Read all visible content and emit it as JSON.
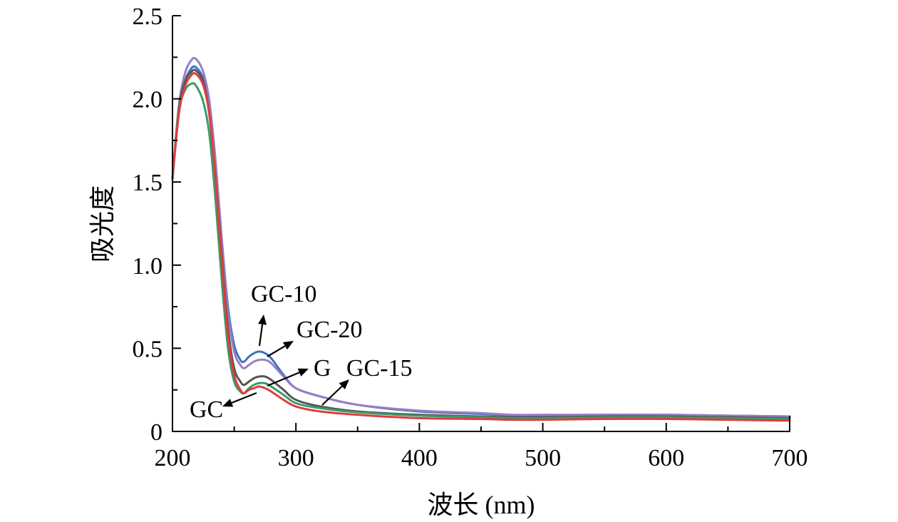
{
  "chart_data": {
    "type": "line",
    "xlabel": "波长 (nm)",
    "ylabel": "吸光度",
    "xlim": [
      200,
      700
    ],
    "ylim": [
      0,
      2.5
    ],
    "xticks": [
      200,
      300,
      400,
      500,
      600,
      700
    ],
    "xtick_labels": [
      "200",
      "300",
      "400",
      "500",
      "600",
      "700"
    ],
    "yticks": [
      0,
      0.5,
      1.0,
      1.5,
      2.0,
      2.5
    ],
    "ytick_labels": [
      "0",
      "0.5",
      "1.0",
      "1.5",
      "2.0",
      "2.5"
    ],
    "grid": false,
    "legend": "none",
    "series": [
      {
        "name": "GC-10",
        "color": "#3a73c4",
        "x": [
          200,
          205,
          210,
          215,
          219,
          225,
          230,
          235,
          240,
          245,
          250,
          255,
          258,
          262,
          266,
          270,
          275,
          280,
          290,
          300,
          320,
          350,
          400,
          450,
          475,
          500,
          550,
          600,
          650,
          700
        ],
        "y": [
          1.52,
          1.9,
          2.1,
          2.18,
          2.19,
          2.12,
          1.95,
          1.6,
          1.15,
          0.75,
          0.52,
          0.43,
          0.42,
          0.45,
          0.47,
          0.48,
          0.47,
          0.44,
          0.34,
          0.26,
          0.21,
          0.16,
          0.12,
          0.105,
          0.095,
          0.095,
          0.1,
          0.1,
          0.095,
          0.09
        ]
      },
      {
        "name": "GC-20",
        "color": "#9a7dc2",
        "x": [
          200,
          205,
          210,
          215,
          219,
          225,
          230,
          235,
          240,
          245,
          250,
          255,
          258,
          262,
          266,
          270,
          275,
          280,
          290,
          300,
          320,
          350,
          400,
          450,
          475,
          500,
          550,
          600,
          650,
          700
        ],
        "y": [
          1.52,
          1.95,
          2.15,
          2.23,
          2.24,
          2.16,
          1.98,
          1.62,
          1.15,
          0.72,
          0.48,
          0.4,
          0.38,
          0.4,
          0.42,
          0.43,
          0.43,
          0.41,
          0.33,
          0.26,
          0.21,
          0.16,
          0.125,
          0.11,
          0.1,
          0.1,
          0.1,
          0.1,
          0.095,
          0.09
        ]
      },
      {
        "name": "G",
        "color": "#555555",
        "x": [
          200,
          205,
          210,
          215,
          219,
          225,
          230,
          235,
          240,
          245,
          250,
          255,
          258,
          262,
          266,
          270,
          275,
          280,
          290,
          300,
          320,
          350,
          400,
          450,
          475,
          500,
          550,
          600,
          650,
          700
        ],
        "y": [
          1.52,
          1.93,
          2.1,
          2.16,
          2.17,
          2.1,
          1.9,
          1.52,
          1.05,
          0.62,
          0.38,
          0.3,
          0.28,
          0.3,
          0.32,
          0.33,
          0.33,
          0.31,
          0.25,
          0.19,
          0.15,
          0.12,
          0.1,
          0.09,
          0.085,
          0.085,
          0.09,
          0.09,
          0.085,
          0.08
        ]
      },
      {
        "name": "GC-15",
        "color": "#3a9a6a",
        "x": [
          200,
          205,
          210,
          215,
          219,
          225,
          230,
          235,
          240,
          245,
          250,
          255,
          258,
          262,
          266,
          270,
          275,
          280,
          290,
          300,
          320,
          350,
          400,
          450,
          475,
          500,
          550,
          600,
          650,
          700
        ],
        "y": [
          1.52,
          1.92,
          2.05,
          2.09,
          2.08,
          1.98,
          1.78,
          1.38,
          0.9,
          0.5,
          0.3,
          0.24,
          0.23,
          0.26,
          0.28,
          0.29,
          0.29,
          0.27,
          0.22,
          0.17,
          0.14,
          0.115,
          0.095,
          0.085,
          0.08,
          0.08,
          0.085,
          0.085,
          0.08,
          0.075
        ]
      },
      {
        "name": "GC",
        "color": "#e03c3c",
        "x": [
          200,
          205,
          210,
          215,
          219,
          225,
          230,
          235,
          240,
          245,
          250,
          255,
          258,
          262,
          266,
          270,
          275,
          280,
          290,
          300,
          320,
          350,
          400,
          450,
          475,
          500,
          550,
          600,
          650,
          700
        ],
        "y": [
          1.52,
          1.9,
          2.07,
          2.14,
          2.15,
          2.08,
          1.9,
          1.52,
          1.02,
          0.58,
          0.34,
          0.25,
          0.23,
          0.25,
          0.26,
          0.27,
          0.26,
          0.24,
          0.19,
          0.15,
          0.12,
          0.1,
          0.08,
          0.075,
          0.07,
          0.07,
          0.075,
          0.075,
          0.07,
          0.065
        ]
      }
    ],
    "annotations": [
      {
        "text": "GC-10",
        "points_to_x": 268,
        "points_to_y": 0.48
      },
      {
        "text": "GC-20",
        "points_to_x": 283,
        "points_to_y": 0.42
      },
      {
        "text": "G",
        "points_to_x": 276,
        "points_to_y": 0.33
      },
      {
        "text": "GC-15",
        "points_to_x": 320,
        "points_to_y": 0.14
      },
      {
        "text": "GC",
        "points_to_x": 262,
        "points_to_y": 0.25
      }
    ]
  }
}
